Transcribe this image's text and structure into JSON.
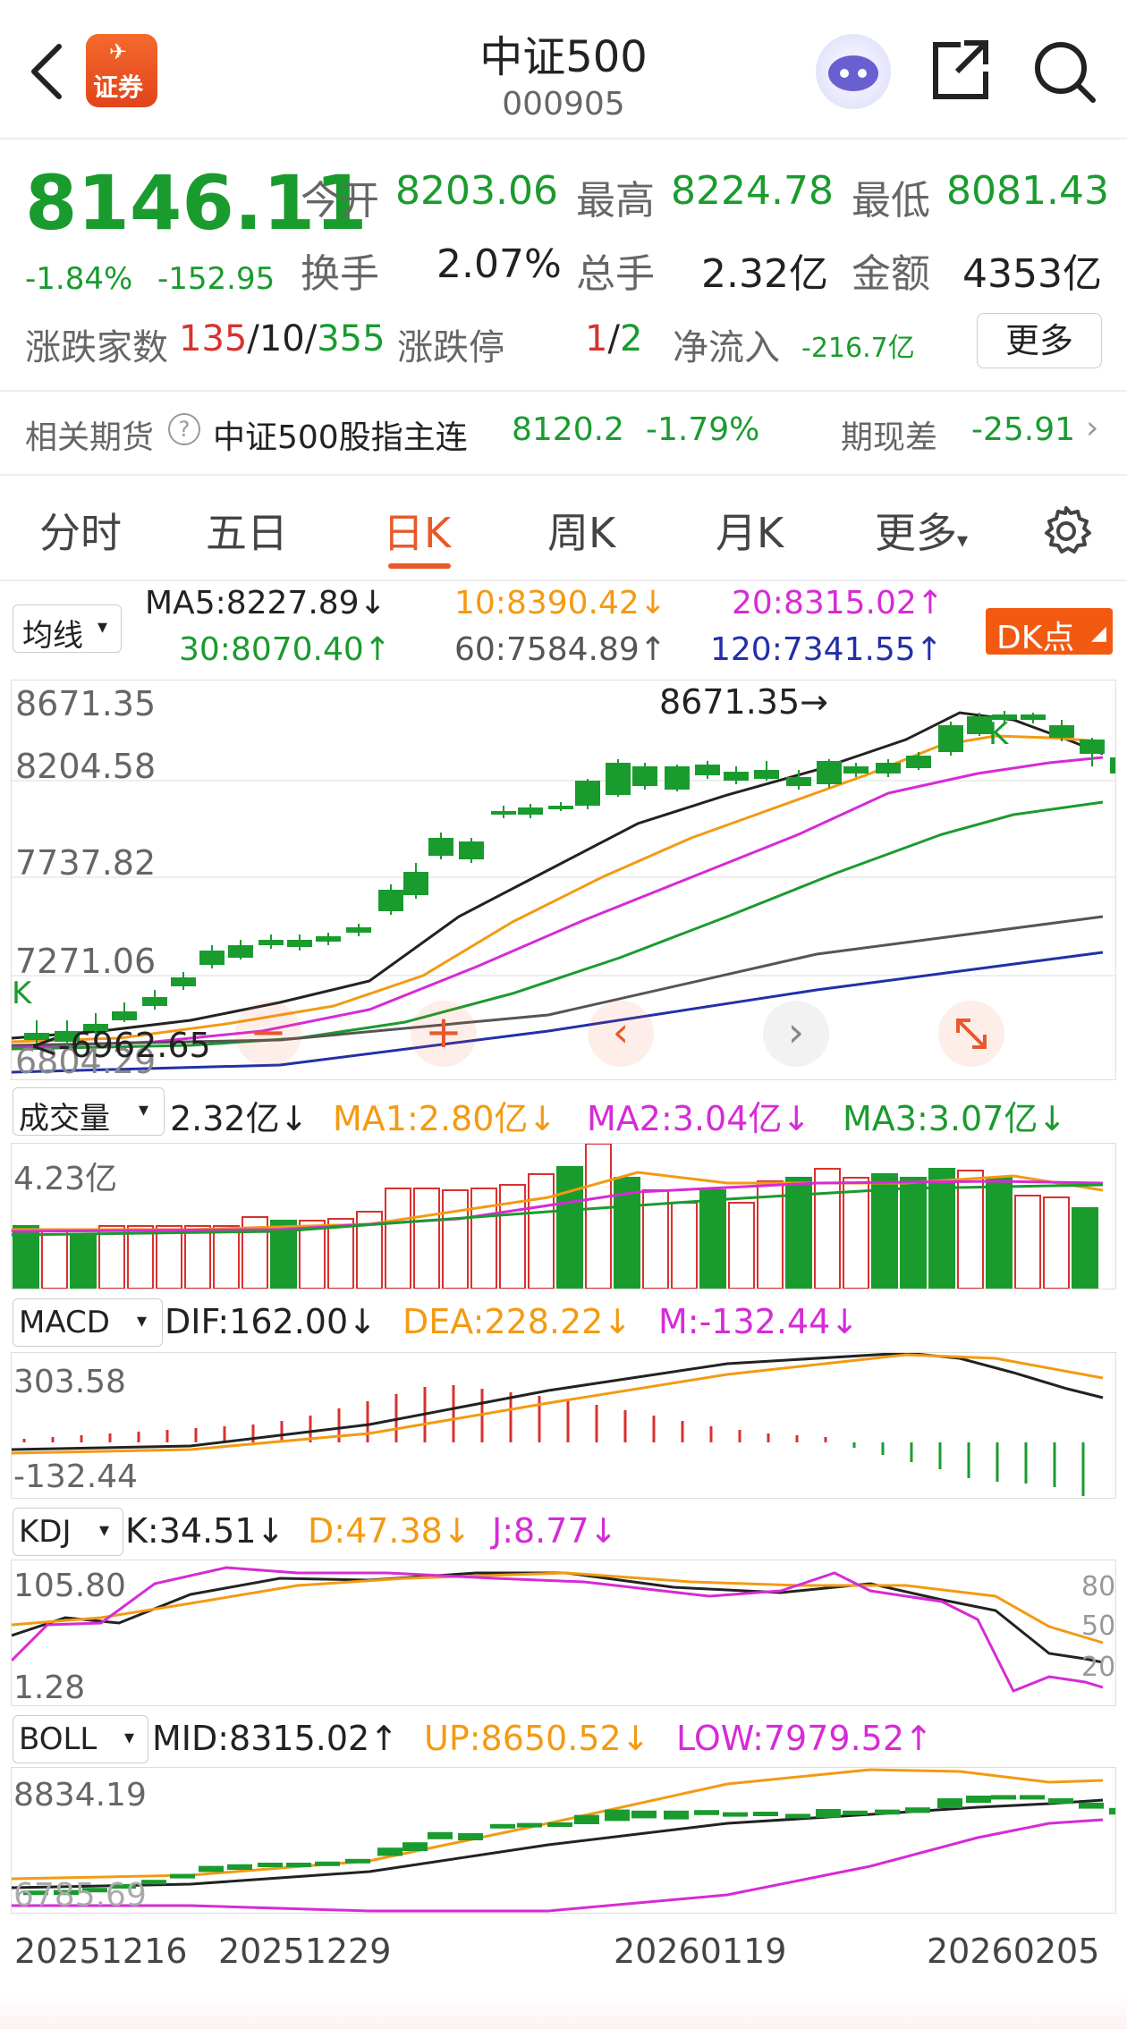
{
  "header": {
    "title": "中证500",
    "code": "000905",
    "logo_text": "证券"
  },
  "quote": {
    "price": "8146.11",
    "change_pct": "-1.84%",
    "change_val": "-152.95",
    "open_label": "今开",
    "open": "8203.06",
    "high_label": "最高",
    "high": "8224.78",
    "low_label": "最低",
    "low": "8081.43",
    "turnover_label": "换手",
    "turnover": "2.07%",
    "volume_label": "总手",
    "volume": "2.32亿",
    "amount_label": "金额",
    "amount": "4353亿",
    "breadth_label": "涨跌家数",
    "breadth_up": "135",
    "breadth_sep1": "/",
    "breadth_flat": "10",
    "breadth_sep2": "/",
    "breadth_down": "355",
    "limit_label": "涨跌停",
    "limit_up": "1",
    "limit_sep": "/",
    "limit_down": "2",
    "inflow_label": "净流入",
    "inflow": "-216.7亿",
    "more_button": "更多"
  },
  "futures": {
    "label": "相关期货",
    "name": "中证500股指主连",
    "price": "8120.2",
    "pct": "-1.79%",
    "basis_label": "期现差",
    "basis": "-25.91"
  },
  "tabs": [
    {
      "label": "分时"
    },
    {
      "label": "五日"
    },
    {
      "label": "日K"
    },
    {
      "label": "周K"
    },
    {
      "label": "月K"
    },
    {
      "label": "更多"
    }
  ],
  "kline": {
    "ma_select": "均线",
    "ma5": "MA5:8227.89",
    "ma10": "10:8390.42",
    "ma20": "20:8315.02",
    "ma30": "30:8070.40",
    "ma60": "60:7584.89",
    "ma120": "120:7341.55",
    "arrow_down": "↓",
    "arrow_up": "↑",
    "dk_button": "DK点",
    "axis": [
      "8671.35",
      "8204.58",
      "7737.82",
      "7271.06",
      "6804.29"
    ],
    "high_mark": "8671.35",
    "low_mark": "6962.65",
    "k_mark": "K"
  },
  "volume_panel": {
    "select": "成交量",
    "value": "2.32亿",
    "ma1": "MA1:2.80亿",
    "ma2": "MA2:3.04亿",
    "ma3": "MA3:3.07亿",
    "axis_top": "4.23亿"
  },
  "macd_panel": {
    "select": "MACD",
    "dif": "DIF:162.00",
    "dea": "DEA:228.22",
    "m": "M:-132.44",
    "axis_top": "303.58",
    "axis_bottom": "-132.44"
  },
  "kdj_panel": {
    "select": "KDJ",
    "k": "K:34.51",
    "d": "D:47.38",
    "j": "J:8.77",
    "axis_top": "105.80",
    "axis_bottom": "1.28",
    "levels": [
      "80",
      "50",
      "20"
    ]
  },
  "boll_panel": {
    "select": "BOLL",
    "mid": "MID:8315.02",
    "up": "UP:8650.52",
    "low": "LOW:7979.52",
    "axis_top": "8834.19",
    "axis_bottom": "6785.69"
  },
  "dates": [
    "20251216",
    "20251229",
    "20260119",
    "20260205"
  ],
  "colors": {
    "up": "#d8322e",
    "down": "#1a9b2e",
    "ma10": "#f39a13",
    "ma20": "#d62bd6",
    "ma60": "#555555",
    "ma120": "#2230a8",
    "accent": "#e8592b"
  }
}
